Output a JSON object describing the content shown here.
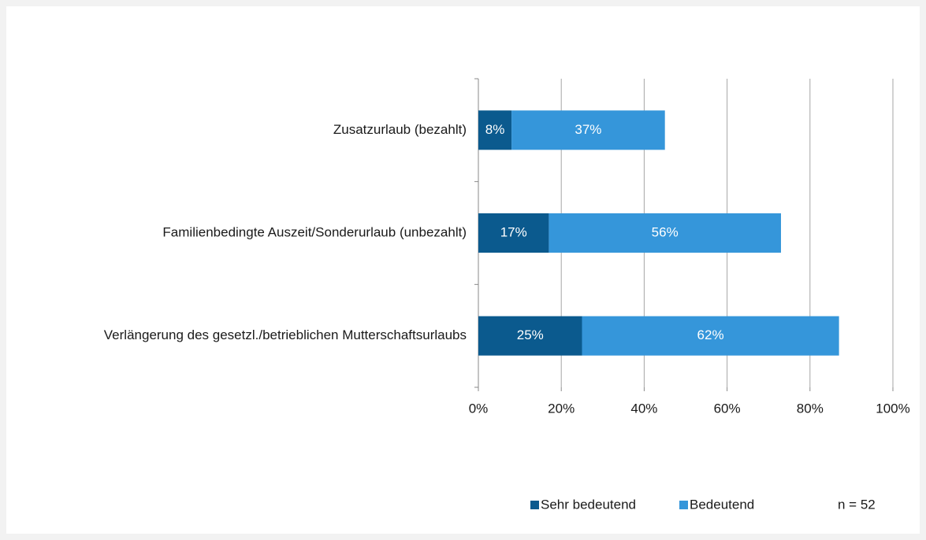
{
  "chart_data": {
    "type": "bar",
    "orientation": "horizontal",
    "stacked": true,
    "categories": [
      "Zusatzurlaub (bezahlt)",
      "Familienbedingte Auszeit/Sonderurlaub (unbezahlt)",
      "Verlängerung des  gesetzl./betrieblichen Mutterschaftsurlaubs"
    ],
    "series": [
      {
        "name": "Sehr bedeutend",
        "color": "#0b5a8e",
        "values": [
          8,
          17,
          25
        ],
        "value_labels": [
          "8%",
          "17%",
          "25%"
        ]
      },
      {
        "name": "Bedeutend",
        "color": "#3596da",
        "values": [
          37,
          56,
          62
        ],
        "value_labels": [
          "37%",
          "56%",
          "62%"
        ]
      }
    ],
    "xlim": [
      0,
      100
    ],
    "xticks": [
      {
        "value": 0,
        "label": "0%"
      },
      {
        "value": 20,
        "label": "20%"
      },
      {
        "value": 40,
        "label": "40%"
      },
      {
        "value": 60,
        "label": "60%"
      },
      {
        "value": 80,
        "label": "80%"
      },
      {
        "value": 100,
        "label": "100%"
      }
    ],
    "grid": true,
    "annotation": "n = 52",
    "legend": "bottom"
  }
}
